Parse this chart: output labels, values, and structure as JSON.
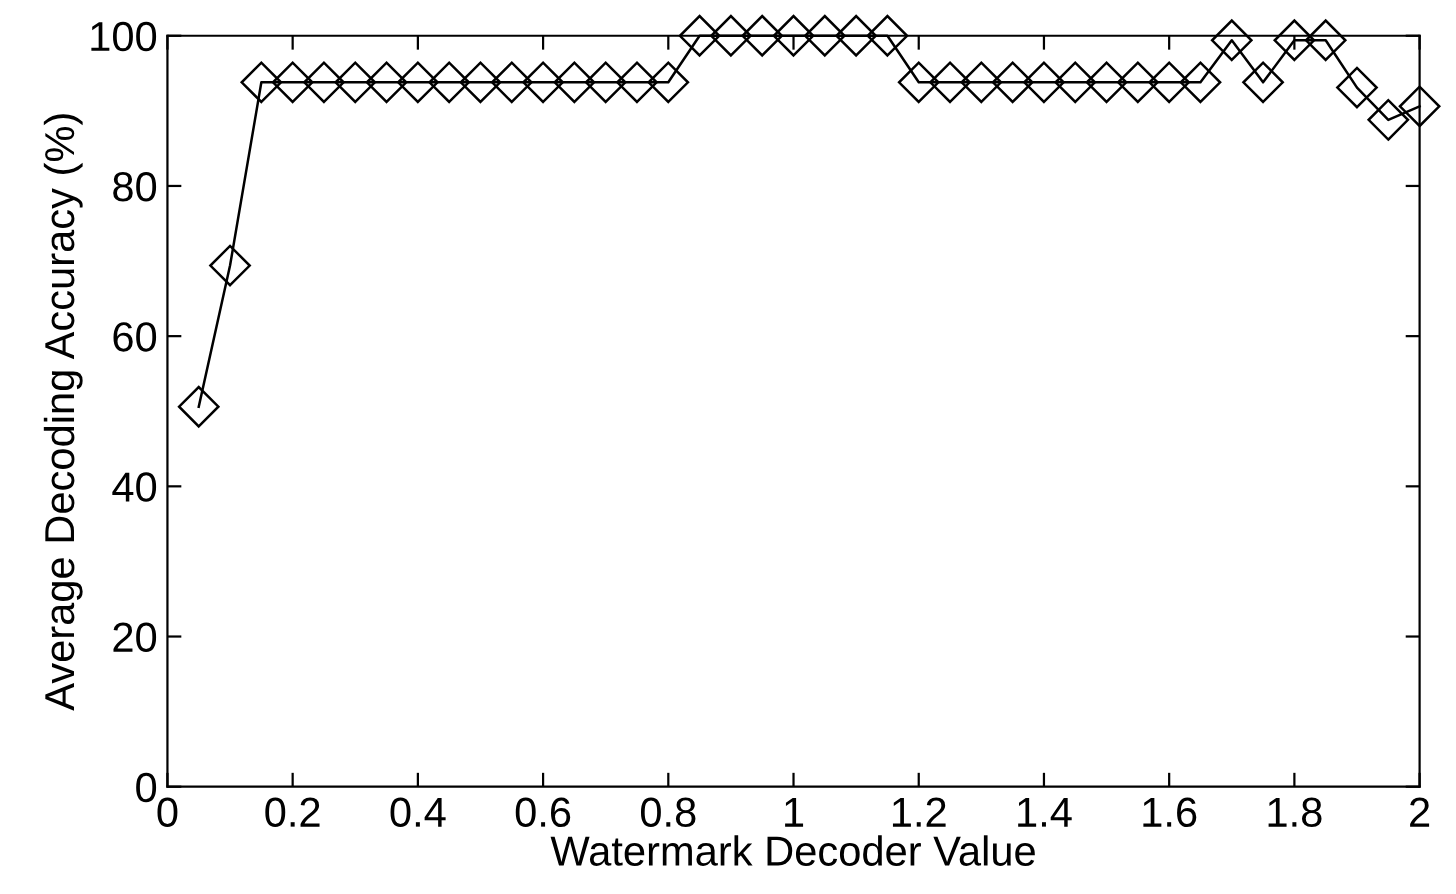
{
  "chart_data": {
    "type": "line",
    "xlabel": "Watermark Decoder Value",
    "ylabel": "Average Decoding Accuracy (%)",
    "x": [
      0.05,
      0.1,
      0.15,
      0.2,
      0.25,
      0.3,
      0.35,
      0.4,
      0.45,
      0.5,
      0.55,
      0.6,
      0.65,
      0.7,
      0.75,
      0.8,
      0.85,
      0.9,
      0.95,
      1.0,
      1.05,
      1.1,
      1.15,
      1.2,
      1.25,
      1.3,
      1.35,
      1.4,
      1.45,
      1.5,
      1.55,
      1.6,
      1.65,
      1.7,
      1.75,
      1.8,
      1.85,
      1.9,
      1.95,
      2.0
    ],
    "series": [
      {
        "color": "#000000",
        "values": [
          50.6,
          69.4,
          93.8,
          93.8,
          93.8,
          93.8,
          93.8,
          93.8,
          93.8,
          93.8,
          93.8,
          93.8,
          93.8,
          93.8,
          93.8,
          93.8,
          100,
          100,
          100,
          100,
          100,
          100,
          100,
          93.8,
          93.8,
          93.8,
          93.8,
          93.8,
          93.8,
          93.8,
          93.8,
          93.8,
          93.8,
          99.4,
          93.8,
          99.4,
          99.4,
          93.1,
          88.8,
          90.6
        ]
      }
    ],
    "xlim": [
      0,
      2
    ],
    "ylim": [
      0,
      100
    ],
    "xticks": [
      0,
      0.2,
      0.4,
      0.6,
      0.8,
      1,
      1.2,
      1.4,
      1.6,
      1.8,
      2
    ],
    "yticks": [
      0,
      20,
      40,
      60,
      80,
      100
    ],
    "grid": false,
    "marker": "diamond",
    "line_style": "solid"
  }
}
